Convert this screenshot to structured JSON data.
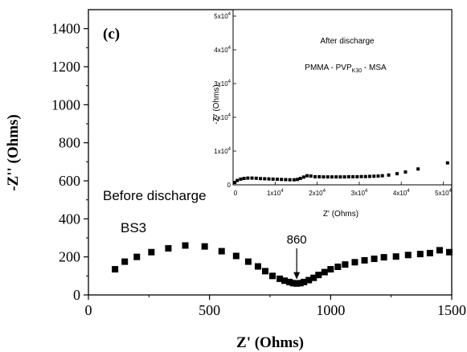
{
  "chart_data": {
    "type": "scatter",
    "panel_label": "(c)",
    "main": {
      "xlabel": "Z' (Ohms)",
      "ylabel": "-Z'' (Ohms)",
      "xlim": [
        0,
        1500
      ],
      "ylim": [
        0,
        1500
      ],
      "xticks": [
        "0",
        "500",
        "1000",
        "1500"
      ],
      "yticks": [
        "0",
        "200",
        "400",
        "600",
        "800",
        "1000",
        "1200",
        "1400"
      ],
      "annotations": {
        "condition": "Before discharge",
        "sample": "BS3",
        "minimum_label": "860",
        "minimum_x": 860
      },
      "series": [
        {
          "marker_color": "#000000",
          "x": [
            110,
            150,
            200,
            260,
            330,
            400,
            480,
            550,
            610,
            660,
            700,
            730,
            760,
            790,
            810,
            830,
            845,
            860,
            875,
            890,
            910,
            930,
            950,
            975,
            1000,
            1030,
            1060,
            1100,
            1140,
            1180,
            1220,
            1270,
            1320,
            1370,
            1410,
            1450,
            1490
          ],
          "y": [
            135,
            175,
            200,
            225,
            245,
            260,
            255,
            230,
            205,
            175,
            150,
            125,
            100,
            85,
            75,
            68,
            62,
            60,
            62,
            68,
            78,
            90,
            105,
            120,
            135,
            148,
            160,
            172,
            182,
            190,
            198,
            202,
            210,
            215,
            220,
            235,
            225
          ]
        }
      ]
    },
    "inset": {
      "title": "After discharge",
      "label_main": "PMMA - PVP",
      "label_sub": "K30",
      "label_end": " - MSA",
      "xlabel": "Z' (Ohms)",
      "ylabel": "-Z'' (Ohms)",
      "xlim": [
        0,
        52000
      ],
      "ylim": [
        0,
        50000
      ],
      "xticks": [
        {
          "m": "",
          "e": "",
          "plain": "0"
        },
        {
          "m": "1x10",
          "e": "4"
        },
        {
          "m": "2x10",
          "e": "4"
        },
        {
          "m": "3x10",
          "e": "4"
        },
        {
          "m": "4x10",
          "e": "4"
        },
        {
          "m": "5x10",
          "e": "4"
        }
      ],
      "yticks": [
        {
          "m": "",
          "e": "",
          "plain": "0"
        },
        {
          "m": "1x10",
          "e": "4"
        },
        {
          "m": "2x10",
          "e": "4"
        },
        {
          "m": "3x10",
          "e": "4"
        },
        {
          "m": "4x10",
          "e": "4"
        },
        {
          "m": "5x10",
          "e": "4"
        }
      ],
      "series": [
        {
          "marker_color": "#000000",
          "x": [
            400,
            1000,
            1800,
            2600,
            3500,
            4500,
            5500,
            6500,
            7500,
            8500,
            9500,
            10500,
            11500,
            12500,
            13500,
            14500,
            15300,
            16000,
            16800,
            17600,
            18500,
            19500,
            20500,
            21500,
            22500,
            23500,
            24500,
            25500,
            26500,
            27500,
            28500,
            29500,
            30500,
            31500,
            32500,
            33500,
            34500,
            35500,
            37000,
            39000,
            41000,
            44000,
            51000
          ],
          "y": [
            700,
            1300,
            1700,
            1900,
            2000,
            2000,
            1950,
            1850,
            1800,
            1750,
            1700,
            1650,
            1600,
            1550,
            1500,
            1500,
            1600,
            1900,
            2300,
            2700,
            2600,
            2400,
            2400,
            2350,
            2350,
            2350,
            2350,
            2350,
            2350,
            2400,
            2400,
            2400,
            2450,
            2450,
            2500,
            2550,
            2600,
            2700,
            2900,
            3300,
            3800,
            4700,
            6500
          ]
        }
      ]
    }
  }
}
